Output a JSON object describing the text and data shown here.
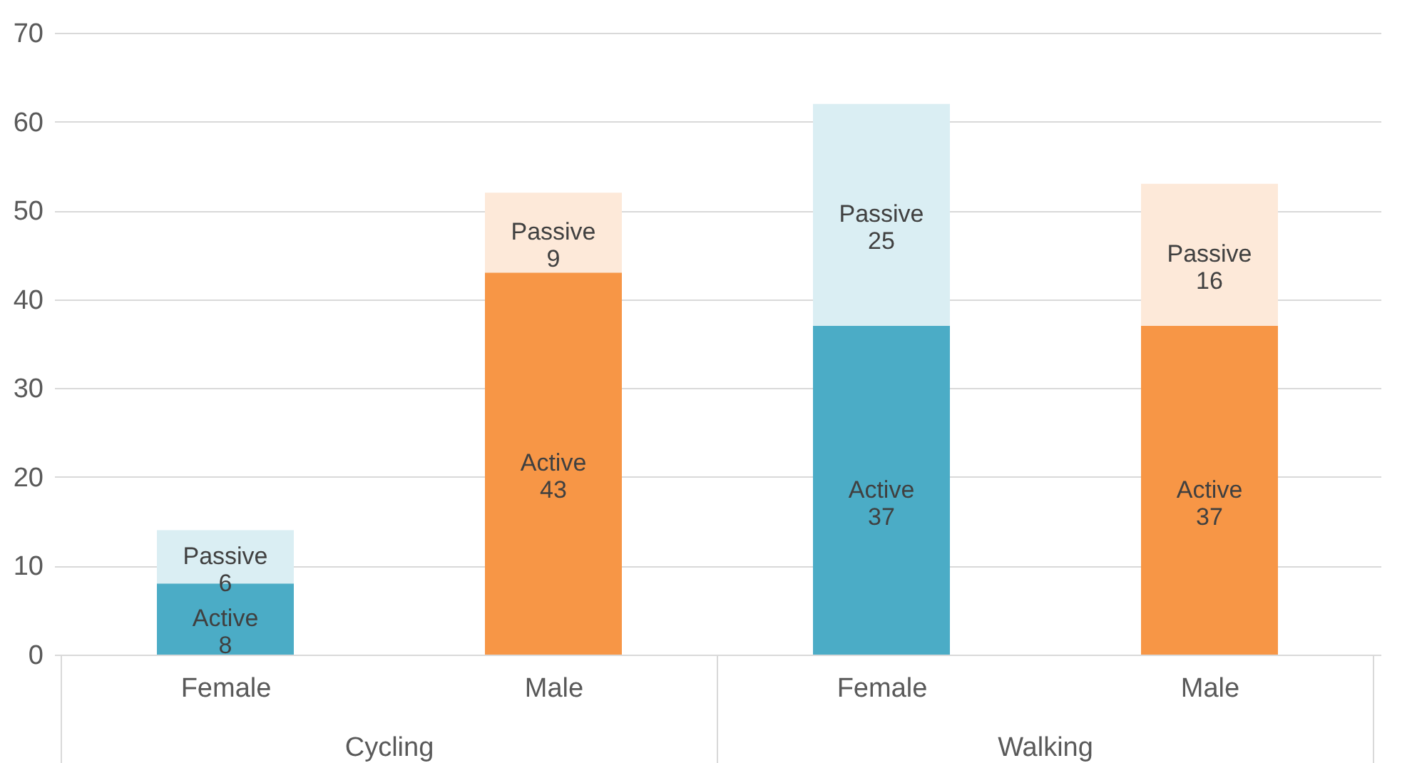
{
  "chart_data": {
    "type": "bar",
    "stacked": true,
    "categories": [
      "Female",
      "Male",
      "Female",
      "Male"
    ],
    "series": [
      {
        "name": "Active",
        "colors": [
          "#4bacc6",
          "#f79646",
          "#4bacc6",
          "#f79646"
        ],
        "values": [
          8,
          43,
          37,
          37
        ]
      },
      {
        "name": "Passive",
        "colors": [
          "#daeef3",
          "#fde9d9",
          "#daeef3",
          "#fde9d9"
        ],
        "values": [
          6,
          9,
          25,
          16
        ]
      }
    ],
    "data_labels": true,
    "ylim": [
      0,
      70
    ],
    "yticks": [
      0,
      10,
      20,
      30,
      40,
      50,
      60,
      70
    ],
    "grid": "y",
    "annotations": [
      "Cycling",
      "Walking"
    ]
  }
}
